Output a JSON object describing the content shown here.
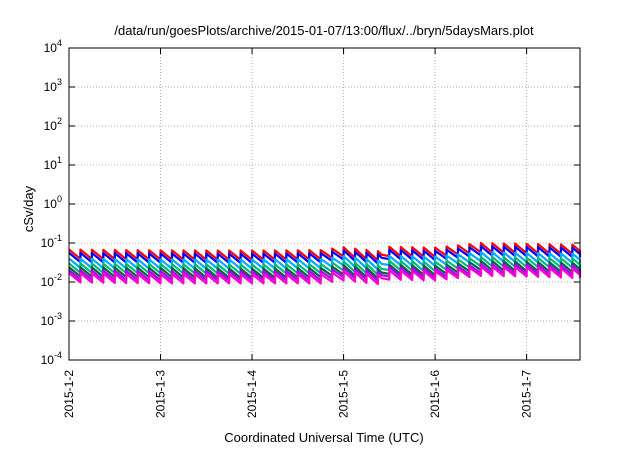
{
  "chart_data": {
    "type": "line",
    "title": "/data/run/goesPlots/archive/2015-01-07/13:00/flux/../bryn/5daysMars.plot",
    "xlabel": "Coordinated Universal Time (UTC)",
    "ylabel": "cSv/day",
    "y_scale": "log",
    "ylim": [
      0.0001,
      10000
    ],
    "xlim": [
      "2015-01-02T00:00",
      "2015-01-07T14:00"
    ],
    "x_ticks": [
      {
        "date": "2015-01-02",
        "label": "2015-1-2"
      },
      {
        "date": "2015-01-03",
        "label": "2015-1-3"
      },
      {
        "date": "2015-01-04",
        "label": "2015-1-4"
      },
      {
        "date": "2015-01-05",
        "label": "2015-1-5"
      },
      {
        "date": "2015-01-06",
        "label": "2015-1-6"
      },
      {
        "date": "2015-01-07",
        "label": "2015-1-7"
      }
    ],
    "y_ticks": [
      {
        "value": 0.0001,
        "base": "10",
        "exp": "-4"
      },
      {
        "value": 0.001,
        "base": "10",
        "exp": "-3"
      },
      {
        "value": 0.01,
        "base": "10",
        "exp": "-2"
      },
      {
        "value": 0.1,
        "base": "10",
        "exp": "-1"
      },
      {
        "value": 1,
        "base": "10",
        "exp": "0"
      },
      {
        "value": 10,
        "base": "10",
        "exp": "1"
      },
      {
        "value": 100,
        "base": "10",
        "exp": "2"
      },
      {
        "value": 1000,
        "base": "10",
        "exp": "3"
      },
      {
        "value": 10000,
        "base": "10",
        "exp": "4"
      }
    ],
    "grid": true,
    "legend": "none",
    "series_period_hours": 3,
    "series": [
      {
        "color": "#ff0000",
        "points": [
          [
            "2015-01-02T00:00",
            0.068
          ],
          [
            "2015-01-03T00:00",
            0.065
          ],
          [
            "2015-01-04T00:00",
            0.064
          ],
          [
            "2015-01-04T18:00",
            0.066
          ],
          [
            "2015-01-05T00:00",
            0.078
          ],
          [
            "2015-01-05T10:00",
            0.06
          ],
          [
            "2015-01-05T12:00",
            0.08
          ],
          [
            "2015-01-06T00:00",
            0.076
          ],
          [
            "2015-01-06T12:00",
            0.1
          ],
          [
            "2015-01-07T00:00",
            0.095
          ],
          [
            "2015-01-07T14:00",
            0.09
          ]
        ]
      },
      {
        "color": "#0000ff",
        "points": [
          [
            "2015-01-02T00:00",
            0.056
          ],
          [
            "2015-01-03T00:00",
            0.054
          ],
          [
            "2015-01-04T00:00",
            0.053
          ],
          [
            "2015-01-04T18:00",
            0.055
          ],
          [
            "2015-01-05T00:00",
            0.065
          ],
          [
            "2015-01-05T10:00",
            0.05
          ],
          [
            "2015-01-05T12:00",
            0.067
          ],
          [
            "2015-01-06T00:00",
            0.063
          ],
          [
            "2015-01-06T12:00",
            0.083
          ],
          [
            "2015-01-07T00:00",
            0.079
          ],
          [
            "2015-01-07T14:00",
            0.075
          ]
        ]
      },
      {
        "color": "#00aaff",
        "points": [
          [
            "2015-01-02T00:00",
            0.04
          ],
          [
            "2015-01-03T00:00",
            0.038
          ],
          [
            "2015-01-04T00:00",
            0.038
          ],
          [
            "2015-01-04T18:00",
            0.039
          ],
          [
            "2015-01-05T00:00",
            0.046
          ],
          [
            "2015-01-05T10:00",
            0.035
          ],
          [
            "2015-01-05T12:00",
            0.047
          ],
          [
            "2015-01-06T00:00",
            0.045
          ],
          [
            "2015-01-06T12:00",
            0.059
          ],
          [
            "2015-01-07T00:00",
            0.056
          ],
          [
            "2015-01-07T14:00",
            0.053
          ]
        ]
      },
      {
        "color": "#00bb77",
        "points": [
          [
            "2015-01-02T00:00",
            0.03
          ],
          [
            "2015-01-03T00:00",
            0.029
          ],
          [
            "2015-01-04T00:00",
            0.028
          ],
          [
            "2015-01-04T18:00",
            0.029
          ],
          [
            "2015-01-05T00:00",
            0.034
          ],
          [
            "2015-01-05T10:00",
            0.026
          ],
          [
            "2015-01-05T12:00",
            0.035
          ],
          [
            "2015-01-06T00:00",
            0.033
          ],
          [
            "2015-01-06T12:00",
            0.044
          ],
          [
            "2015-01-07T00:00",
            0.042
          ],
          [
            "2015-01-07T14:00",
            0.04
          ]
        ]
      },
      {
        "color": "#006633",
        "points": [
          [
            "2015-01-02T00:00",
            0.024
          ],
          [
            "2015-01-03T00:00",
            0.023
          ],
          [
            "2015-01-04T00:00",
            0.022
          ],
          [
            "2015-01-04T18:00",
            0.023
          ],
          [
            "2015-01-05T00:00",
            0.027
          ],
          [
            "2015-01-05T10:00",
            0.021
          ],
          [
            "2015-01-05T12:00",
            0.028
          ],
          [
            "2015-01-06T00:00",
            0.026
          ],
          [
            "2015-01-06T12:00",
            0.035
          ],
          [
            "2015-01-07T00:00",
            0.033
          ],
          [
            "2015-01-07T14:00",
            0.031
          ]
        ]
      },
      {
        "color": "#aa00ff",
        "points": [
          [
            "2015-01-02T00:00",
            0.02
          ],
          [
            "2015-01-03T00:00",
            0.019
          ],
          [
            "2015-01-04T00:00",
            0.019
          ],
          [
            "2015-01-04T18:00",
            0.019
          ],
          [
            "2015-01-05T00:00",
            0.023
          ],
          [
            "2015-01-05T10:00",
            0.018
          ],
          [
            "2015-01-05T12:00",
            0.024
          ],
          [
            "2015-01-06T00:00",
            0.022
          ],
          [
            "2015-01-06T12:00",
            0.029
          ],
          [
            "2015-01-07T00:00",
            0.028
          ],
          [
            "2015-01-07T14:00",
            0.026
          ]
        ]
      },
      {
        "color": "#ff00cc",
        "points": [
          [
            "2015-01-02T00:00",
            0.017
          ],
          [
            "2015-01-03T00:00",
            0.016
          ],
          [
            "2015-01-04T00:00",
            0.016
          ],
          [
            "2015-01-04T18:00",
            0.016
          ],
          [
            "2015-01-05T00:00",
            0.019
          ],
          [
            "2015-01-05T10:00",
            0.015
          ],
          [
            "2015-01-05T12:00",
            0.02
          ],
          [
            "2015-01-06T00:00",
            0.019
          ],
          [
            "2015-01-06T12:00",
            0.025
          ],
          [
            "2015-01-07T00:00",
            0.024
          ],
          [
            "2015-01-07T14:00",
            0.022
          ]
        ]
      }
    ]
  }
}
